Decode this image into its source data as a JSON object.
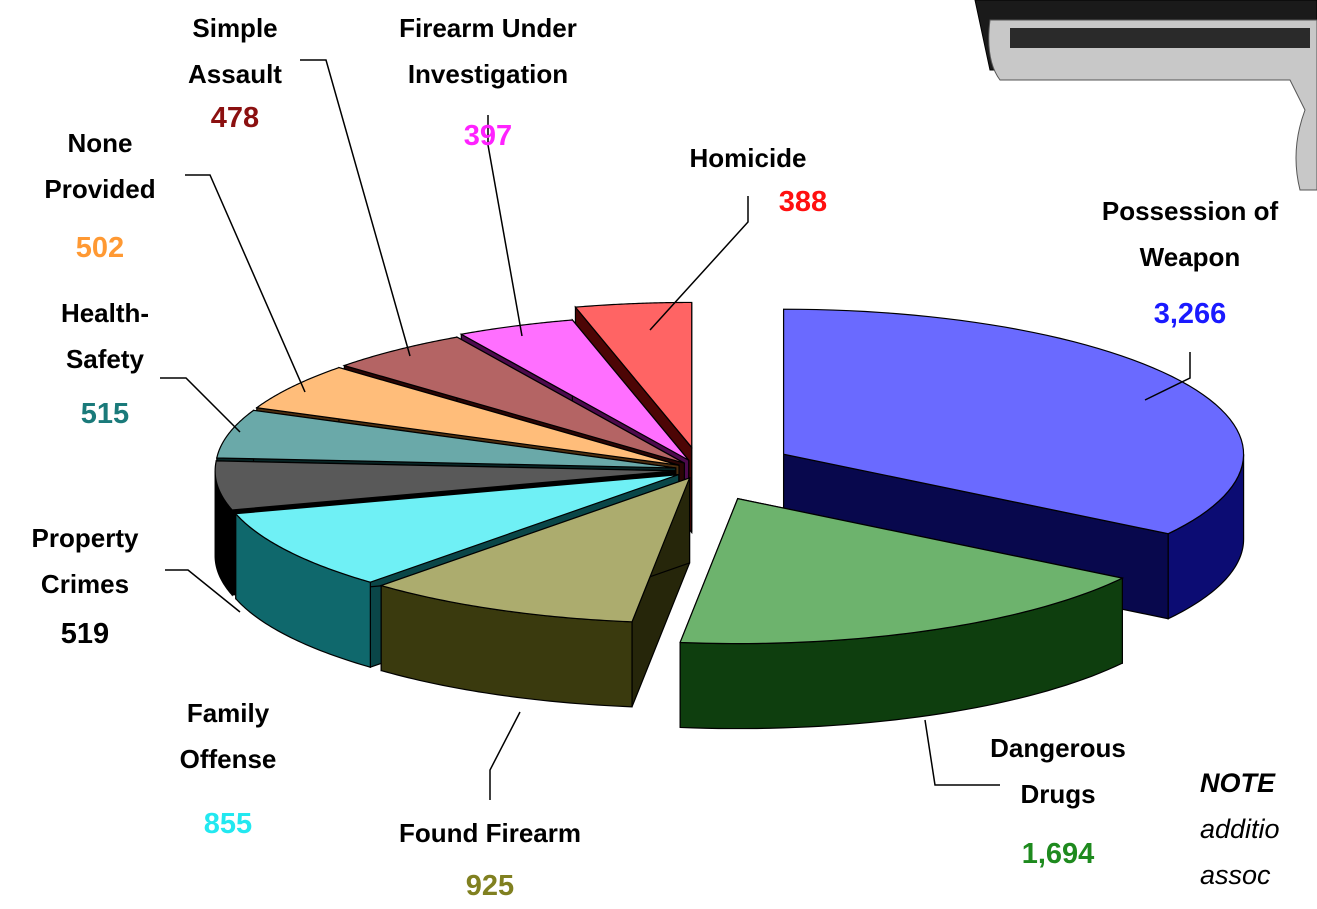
{
  "chart_data": {
    "type": "pie3d",
    "categories": [
      "Possession of Weapon",
      "Dangerous Drugs",
      "Found Firearm",
      "Family Offense",
      "Property Crimes",
      "Health-Safety",
      "None Provided",
      "Simple Assault",
      "Firearm Under Investigation",
      "Homicide"
    ],
    "values": [
      3266,
      1694,
      925,
      855,
      519,
      515,
      502,
      478,
      397,
      388
    ],
    "value_labels": [
      "3,266",
      "1,694",
      "925",
      "855",
      "519",
      "515",
      "502",
      "478",
      "397",
      "388"
    ],
    "colors": [
      "#1a1aff",
      "#1e8a1e",
      "#808020",
      "#22e8f0",
      "#000000",
      "#1a7a7a",
      "#ff9933",
      "#8b1010",
      "#ff22ff",
      "#ff1010"
    ],
    "note": {
      "title": "NOTE",
      "lines": [
        "additio",
        "assoc"
      ]
    }
  }
}
